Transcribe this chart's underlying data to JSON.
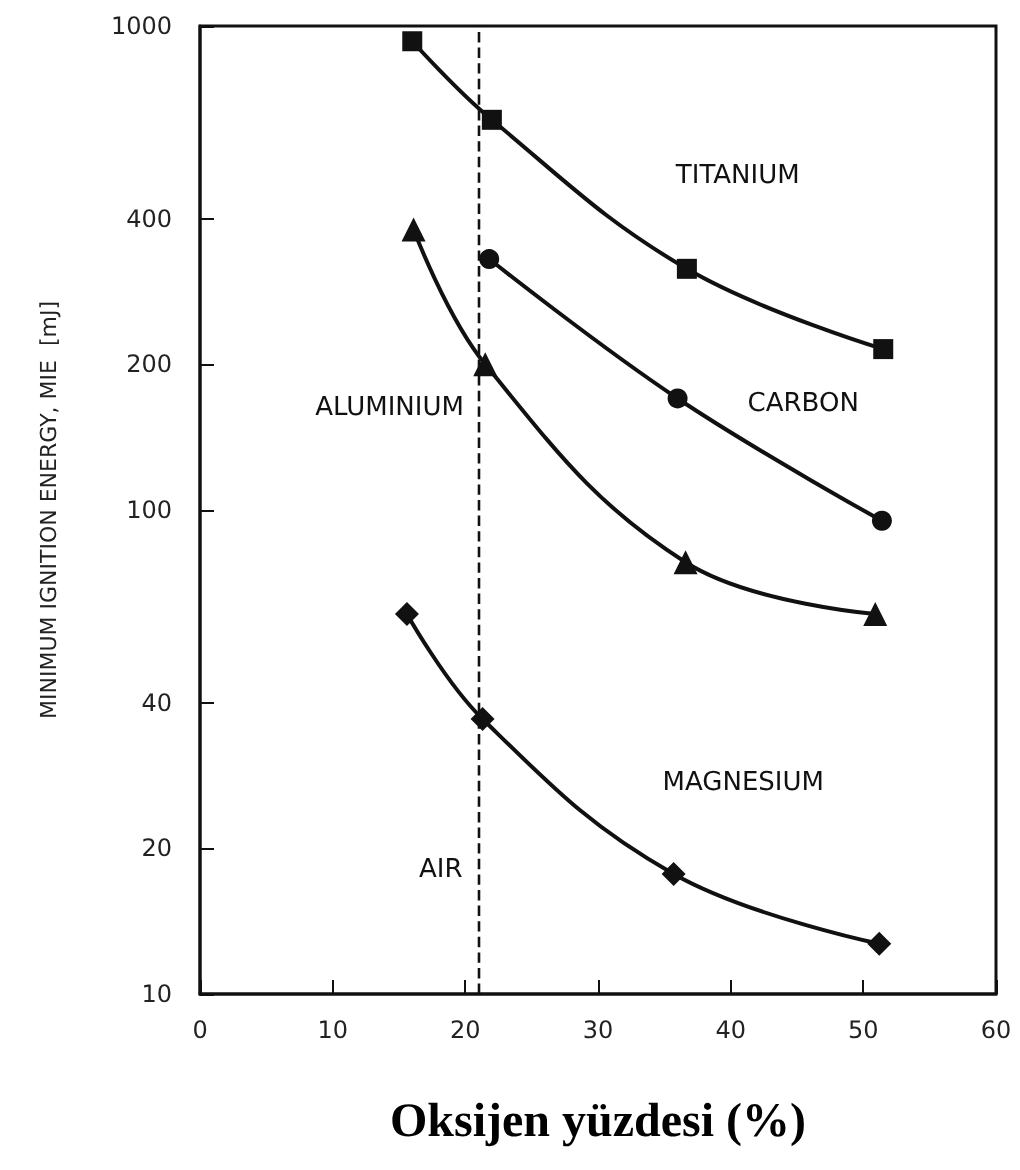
{
  "chart_data": {
    "type": "line",
    "xlabel": "Oksijen yüzdesi (%)",
    "ylabel": "MINIMUM IGNITION ENERGY, MIE  [mJ]",
    "xlim": [
      0,
      60
    ],
    "xticks": [
      0,
      10,
      20,
      30,
      40,
      50,
      60
    ],
    "ylim": [
      10,
      1000
    ],
    "yticks": [
      10,
      20,
      40,
      100,
      200,
      400,
      1000
    ],
    "log": "y",
    "grid": false,
    "legend": false,
    "line_style": "solid",
    "series": [
      {
        "name": "TITANIUM",
        "color": "#111111",
        "marker": "square",
        "x": [
          16,
          22,
          36.7,
          51.5
        ],
        "values": [
          930,
          640,
          315,
          215
        ]
      },
      {
        "name": "CARBON",
        "color": "#111111",
        "marker": "circle",
        "x": [
          21.8,
          36,
          51.4
        ],
        "values": [
          330,
          170,
          95
        ]
      },
      {
        "name": "ALUMINIUM",
        "color": "#111111",
        "marker": "triangle",
        "x": [
          16.1,
          21.5,
          36.6,
          50.9
        ],
        "values": [
          380,
          200,
          78,
          61
        ]
      },
      {
        "name": "MAGNESIUM",
        "color": "#111111",
        "marker": "diamond",
        "x": [
          15.6,
          21.3,
          35.7,
          51.2
        ],
        "values": [
          61,
          37,
          17.7,
          12.7
        ]
      }
    ],
    "ref_lines": [
      {
        "axis": "x",
        "value": 21,
        "label": "AIR",
        "line_style": "dashed",
        "color": "#111111"
      }
    ]
  }
}
